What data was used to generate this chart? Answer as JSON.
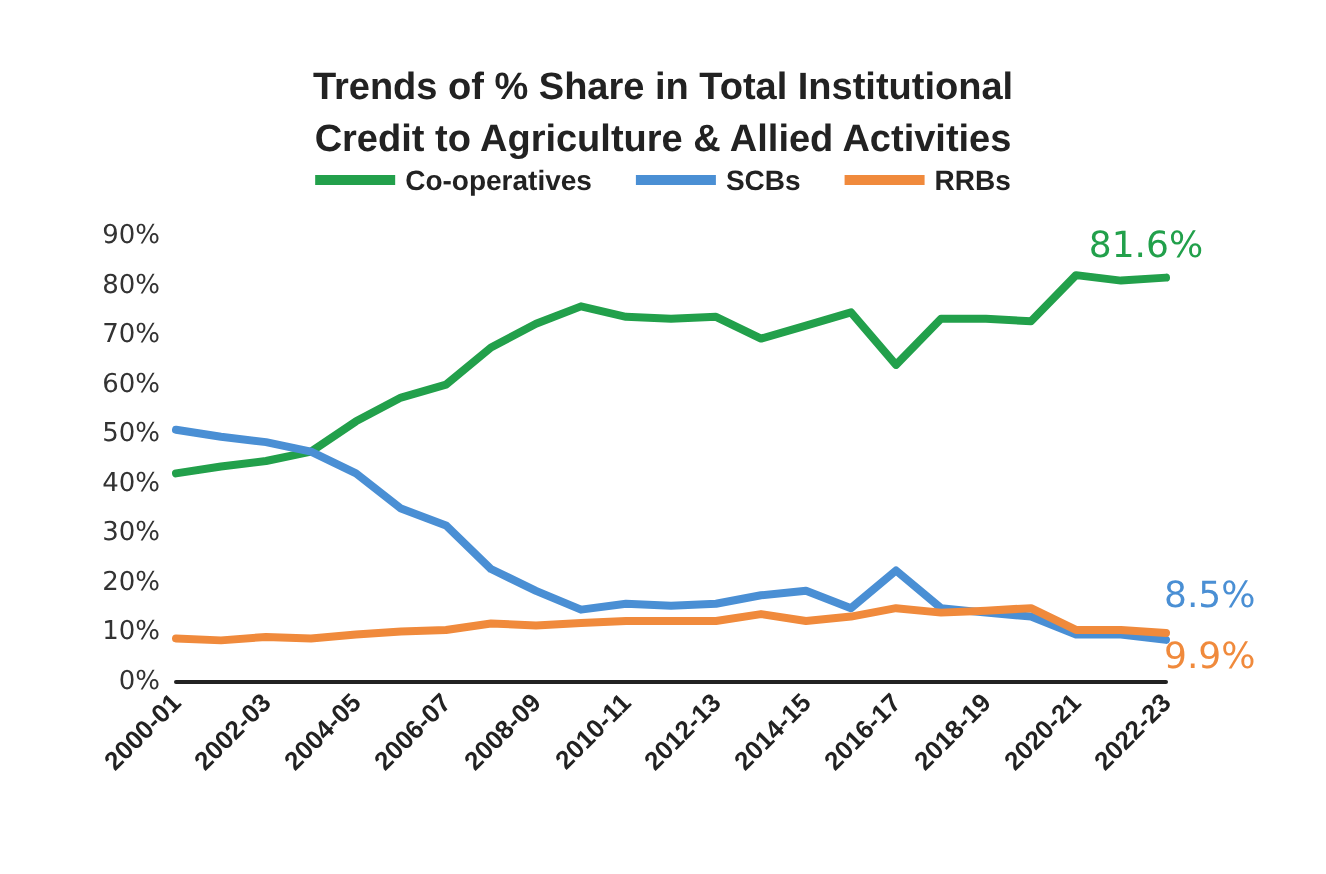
{
  "chart_data": {
    "type": "line",
    "title": "Trends of % Share in Total Institutional\nCredit to Agriculture & Allied Activities",
    "categories": [
      "2000-01",
      null,
      "2002-03",
      null,
      "2004-05",
      null,
      "2006-07",
      null,
      "2008-09",
      null,
      "2010-11",
      null,
      "2012-13",
      null,
      "2014-15",
      null,
      "2016-17",
      null,
      "2018-19",
      null,
      "2020-21",
      null,
      "2022-23"
    ],
    "series": [
      {
        "name": "Co-operatives",
        "color": "#22a04b",
        "values": [
          42.1,
          43.5,
          44.6,
          46.5,
          52.6,
          57.4,
          60,
          67.5,
          72.3,
          75.8,
          73.7,
          73.3,
          73.7,
          69.3,
          71.9,
          74.6,
          64,
          73.3,
          73.3,
          72.8,
          82.1,
          81,
          81.6
        ],
        "value_labels": [
          null,
          null,
          null,
          null,
          null,
          null,
          null,
          null,
          null,
          null,
          null,
          null,
          null,
          null,
          null,
          null,
          null,
          null,
          null,
          null,
          null,
          null,
          "81.6%"
        ]
      },
      {
        "name": "SCBs",
        "color": "#4a8fd4",
        "values": [
          50.9,
          49.5,
          48.4,
          46.5,
          42.1,
          35,
          31.6,
          22.8,
          18.4,
          14.6,
          15.8,
          15.4,
          15.8,
          17.5,
          18.4,
          14.9,
          22.5,
          14.9,
          14,
          13.2,
          9.6,
          9.6,
          8.5
        ],
        "value_labels": [
          null,
          null,
          null,
          null,
          null,
          null,
          null,
          null,
          null,
          null,
          null,
          null,
          null,
          null,
          null,
          null,
          null,
          null,
          null,
          null,
          null,
          null,
          "8.5%"
        ]
      },
      {
        "name": "RRBs",
        "color": "#f08a3c",
        "values": [
          8.8,
          8.4,
          9.1,
          8.8,
          9.6,
          10.2,
          10.5,
          11.8,
          11.4,
          11.9,
          12.3,
          12.3,
          12.3,
          13.7,
          12.3,
          13.2,
          14.9,
          14,
          14.4,
          14.9,
          10.5,
          10.5,
          9.9
        ],
        "value_labels": [
          null,
          null,
          null,
          null,
          null,
          null,
          null,
          null,
          null,
          null,
          null,
          null,
          null,
          null,
          null,
          null,
          null,
          null,
          null,
          null,
          null,
          null,
          "9.9%"
        ]
      }
    ],
    "ylim": [
      0,
      90
    ],
    "yticks": [
      {
        "value": 0,
        "label": "0%"
      },
      {
        "value": 10,
        "label": "10%"
      },
      {
        "value": 20,
        "label": "20%"
      },
      {
        "value": 30,
        "label": "30%"
      },
      {
        "value": 40,
        "label": "40%"
      },
      {
        "value": 50,
        "label": "50%"
      },
      {
        "value": 60,
        "label": "60%"
      },
      {
        "value": 70,
        "label": "70%"
      },
      {
        "value": 80,
        "label": "80%"
      },
      {
        "value": 90,
        "label": "90%"
      }
    ],
    "grid": false,
    "legend": "top",
    "marker": "none",
    "line_style": "solid"
  }
}
